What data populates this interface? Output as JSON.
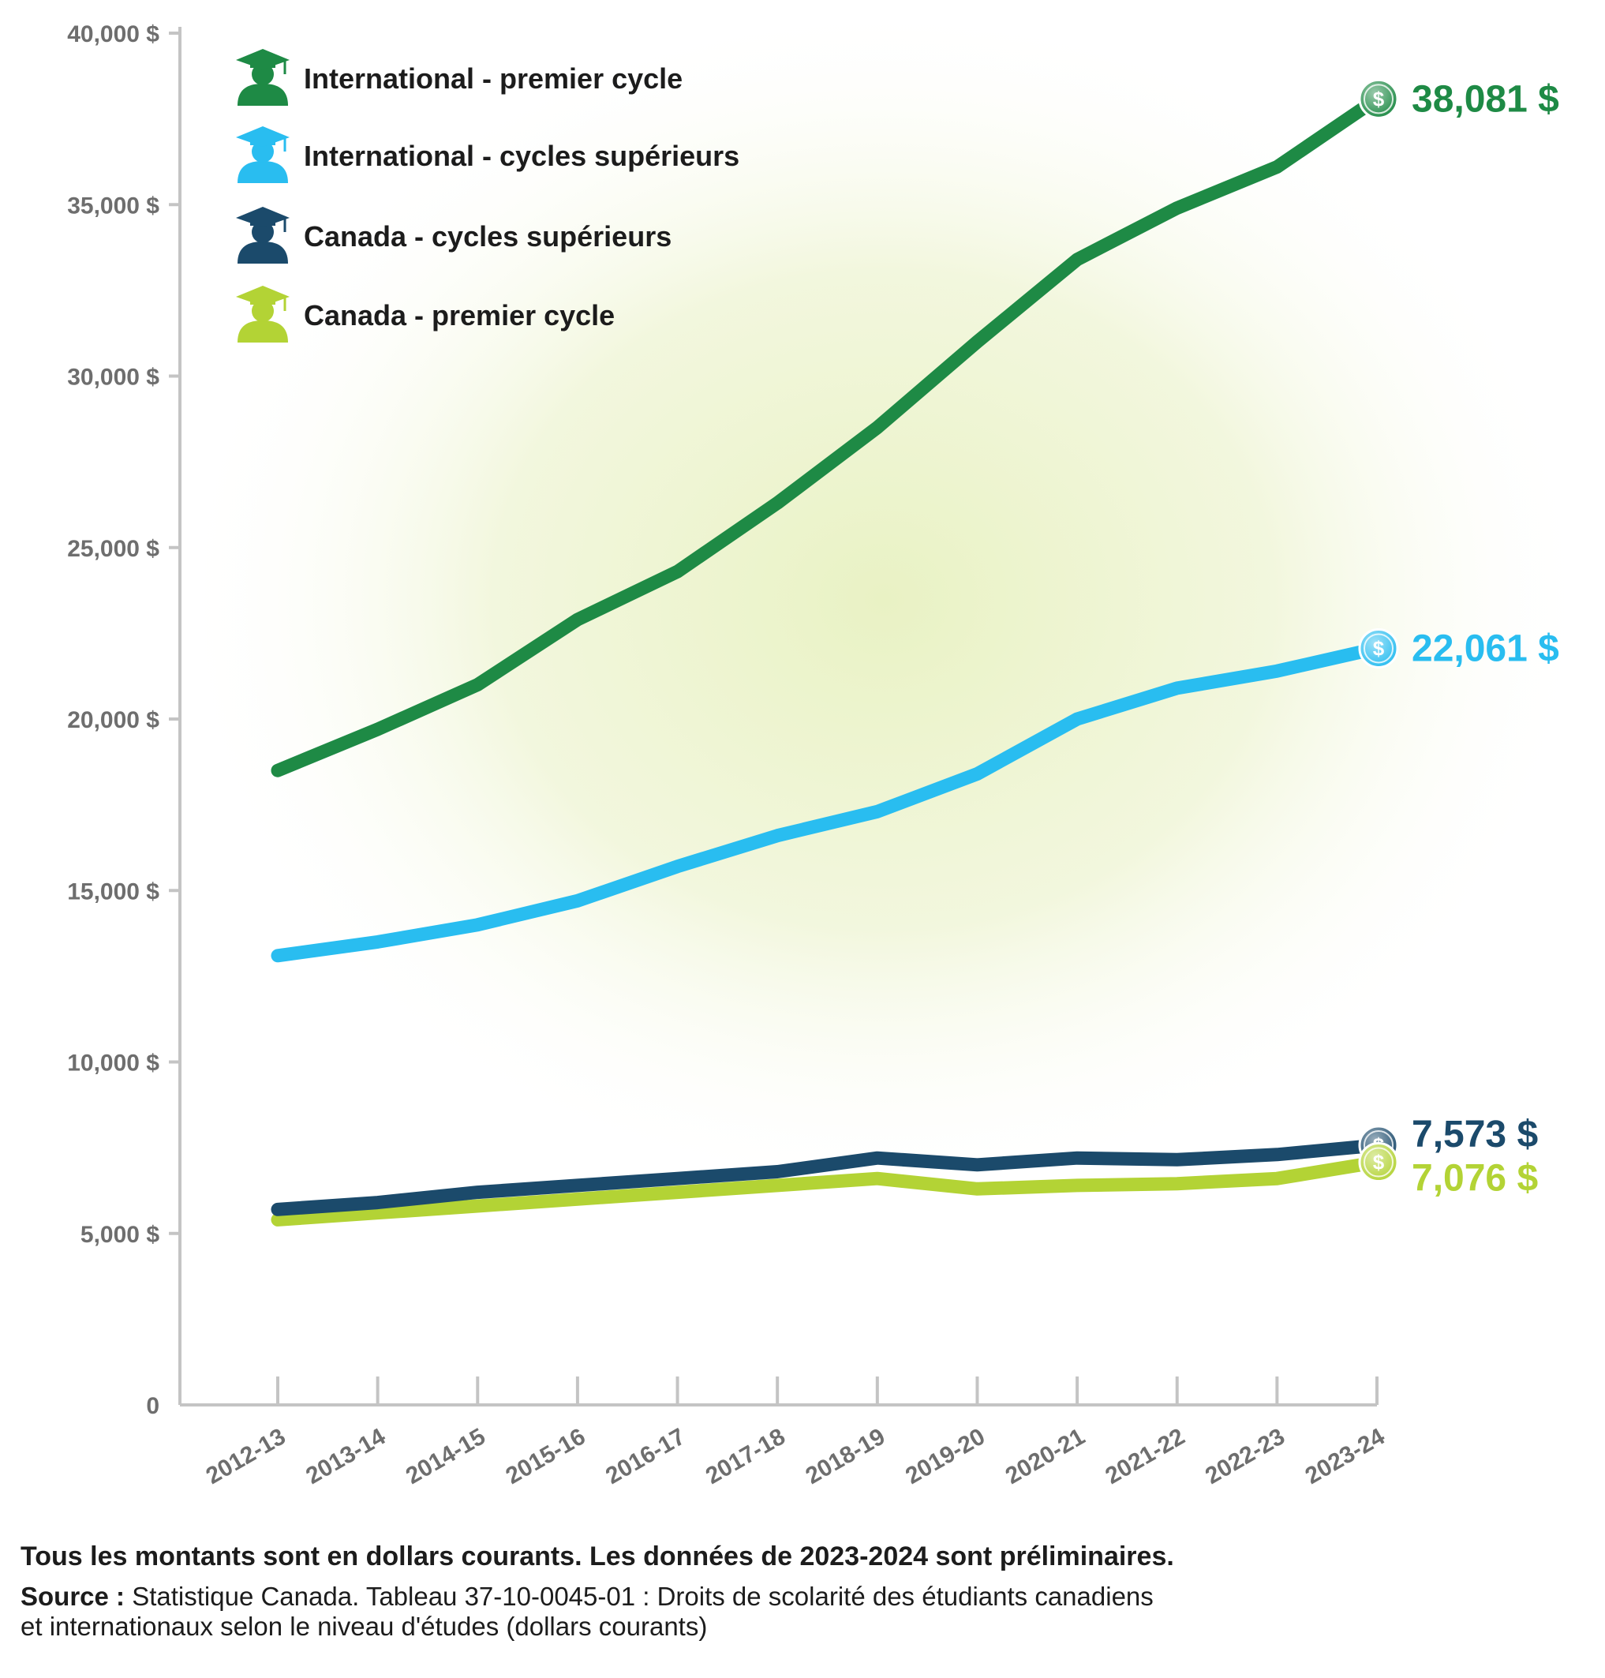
{
  "chart_data": {
    "type": "line",
    "title": "",
    "xlabel": "",
    "ylabel": "",
    "ylim": [
      0,
      40000
    ],
    "grid": false,
    "legend_position": "top-left",
    "y_ticks": [
      "0",
      "5,000 $",
      "10,000 $",
      "15,000 $",
      "20,000 $",
      "25,000 $",
      "30,000 $",
      "35,000 $",
      "40,000 $"
    ],
    "y_tick_values": [
      0,
      5000,
      10000,
      15000,
      20000,
      25000,
      30000,
      35000,
      40000
    ],
    "categories": [
      "2012-13",
      "2013-14",
      "2014-15",
      "2015-16",
      "2016-17",
      "2017-18",
      "2018-19",
      "2019-20",
      "2020-21",
      "2021-22",
      "2022-23",
      "2023-24"
    ],
    "series": [
      {
        "name": "International - premier cycle",
        "color": "#1e8a45",
        "icon": "graduate-icon",
        "values": [
          18500,
          19700,
          21000,
          22900,
          24300,
          26300,
          28500,
          31000,
          33400,
          34900,
          36100,
          38081
        ],
        "end_label": "38,081 $"
      },
      {
        "name": "International - cycles supérieurs",
        "color": "#29bdf0",
        "icon": "graduate-icon",
        "values": [
          13100,
          13500,
          14000,
          14700,
          15700,
          16600,
          17300,
          18400,
          20000,
          20900,
          21400,
          22061
        ],
        "end_label": "22,061 $"
      },
      {
        "name": "Canada - cycles supérieurs",
        "color": "#1b4a6b",
        "icon": "graduate-icon",
        "values": [
          5700,
          5900,
          6200,
          6400,
          6600,
          6800,
          7200,
          7000,
          7200,
          7150,
          7300,
          7573
        ],
        "end_label": "7,573 $"
      },
      {
        "name": "Canada - premier cycle",
        "color": "#b3d335",
        "icon": "graduate-icon",
        "values": [
          5400,
          5600,
          5800,
          6000,
          6200,
          6400,
          6600,
          6300,
          6400,
          6450,
          6600,
          7076
        ],
        "end_label": "7,076 $"
      }
    ],
    "end_marker_icon": "dollar-coin-icon",
    "end_marker_symbol": "$"
  },
  "footer": {
    "note": "Tous les montants sont en dollars courants. Les données de 2023-2024 sont préliminaires.",
    "source_label": "Source :",
    "source_line1": "Statistique Canada. Tableau 37-10-0045-01 : Droits de scolarité des étudiants canadiens",
    "source_line2": "et internationaux selon le niveau d'études (dollars courants)"
  }
}
